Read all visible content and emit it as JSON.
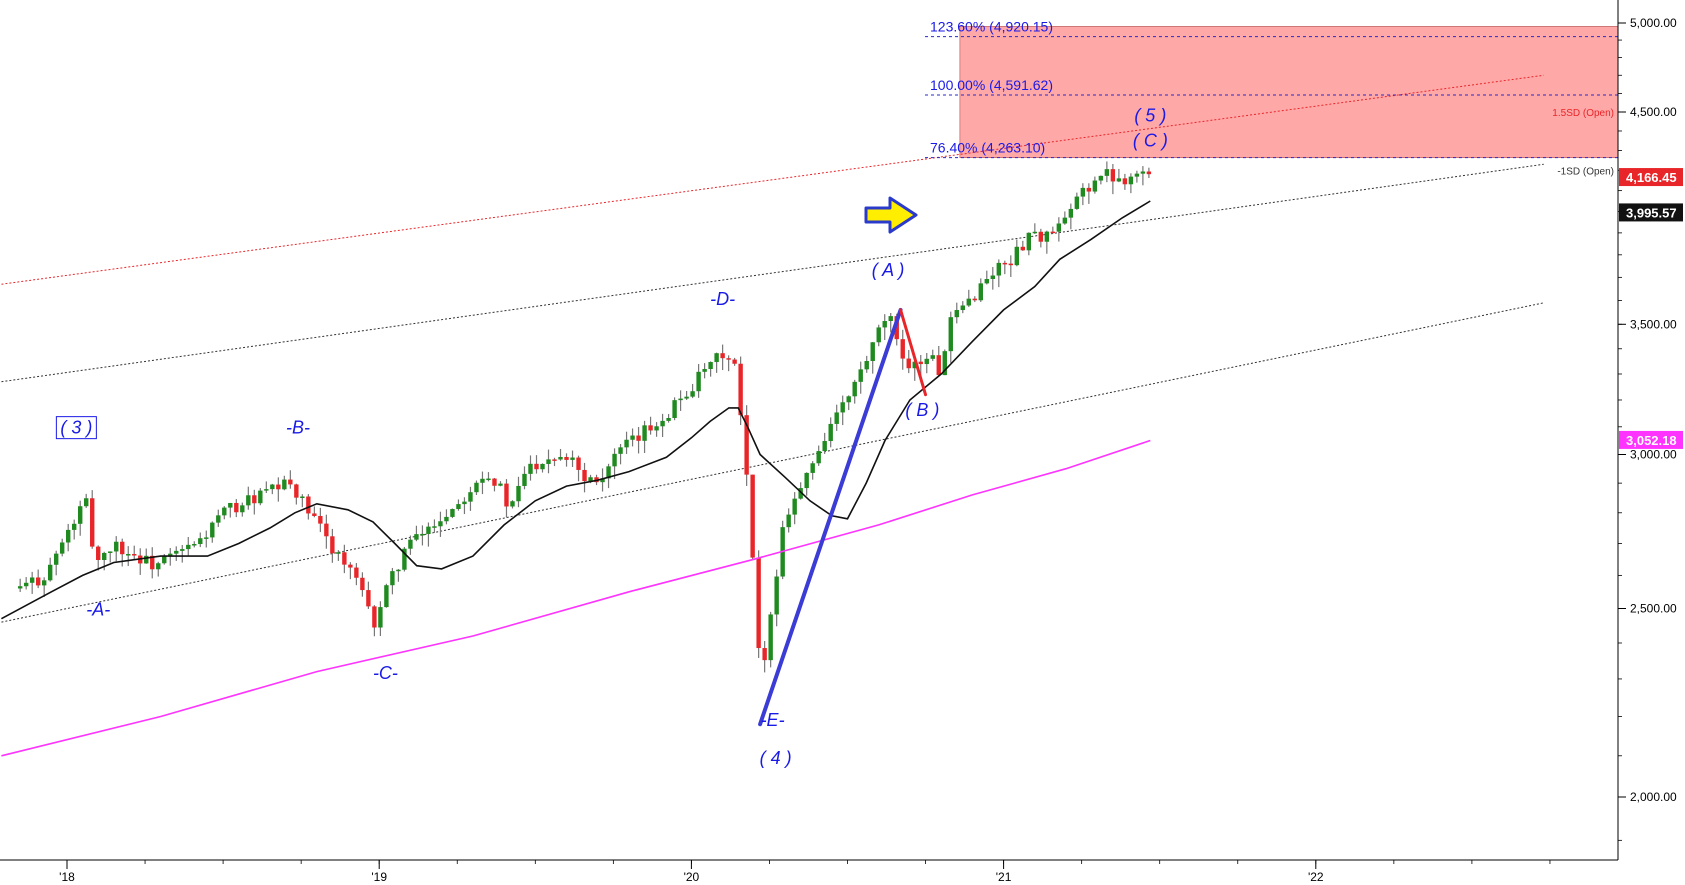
{
  "chart_data": {
    "type": "candlestick",
    "instrument_last": "4,166.45",
    "y_axis": {
      "ticks": [
        "5,000.00",
        "4,500.00",
        "3,500.00",
        "3,000.00",
        "2,500.00",
        "2,000.00"
      ],
      "tick_values": [
        5000,
        4500,
        3500,
        3000,
        2500,
        2000
      ],
      "range": [
        1750,
        5100
      ],
      "scale": "log"
    },
    "x_axis": {
      "ticks": [
        "'18",
        "'19",
        "'20",
        "'21",
        "'22"
      ],
      "tick_years": [
        2018,
        2019,
        2020,
        2021,
        2022
      ]
    },
    "price_tags": [
      {
        "label": "4,166.45",
        "value": 4166.45,
        "color": "#e8262a",
        "text_color": "#ffffff"
      },
      {
        "label": "3,995.57",
        "value": 3995.57,
        "color": "#111111",
        "text_color": "#ffffff"
      },
      {
        "label": "3,052.18",
        "value": 3052.18,
        "color": "#ff33ff",
        "text_color": "#ffffff"
      }
    ],
    "fib_levels": [
      {
        "label": "123.60% (4,920.15)",
        "value": 4920.15
      },
      {
        "label": "100.00% (4,591.62)",
        "value": 4591.62
      },
      {
        "label": "76.40% (4,263.10)",
        "value": 4263.1
      }
    ],
    "target_zone": {
      "low": 4263.1,
      "high": 4980,
      "start": 2020.86,
      "color": "#ff9e9e"
    },
    "channel_labels": [
      {
        "label": "1.5SD (Open)",
        "color": "#e8262a"
      },
      {
        "label": "-1SD (Open)",
        "color": "#333333"
      }
    ],
    "wave_labels": [
      {
        "text": "( 3 )",
        "t": 2018.03,
        "v": 3075,
        "boxed": true
      },
      {
        "text": "-A-",
        "t": 2018.1,
        "v": 2480
      },
      {
        "text": "-B-",
        "t": 2018.74,
        "v": 3075
      },
      {
        "text": "-C-",
        "t": 2019.02,
        "v": 2300
      },
      {
        "text": "-D-",
        "t": 2020.1,
        "v": 3580
      },
      {
        "text": "-E-",
        "t": 2020.26,
        "v": 2175
      },
      {
        "text": "( 4 )",
        "t": 2020.27,
        "v": 2080
      },
      {
        "text": "( A )",
        "t": 2020.63,
        "v": 3705
      },
      {
        "text": "( B )",
        "t": 2020.74,
        "v": 3140
      },
      {
        "text": "( 5 )",
        "t": 2021.47,
        "v": 4450
      },
      {
        "text": "( C )",
        "t": 2021.47,
        "v": 4320
      }
    ],
    "series": [
      {
        "name": "",
        "type": "candles",
        "up_color": "#1f8a1f",
        "down_color": "#e8262a",
        "anchors": [
          [
            2017.85,
            2560
          ],
          [
            2017.93,
            2600
          ],
          [
            2017.98,
            2690
          ],
          [
            2018.06,
            2840
          ],
          [
            2018.09,
            2640
          ],
          [
            2018.15,
            2700
          ],
          [
            2018.2,
            2670
          ],
          [
            2018.28,
            2630
          ],
          [
            2018.42,
            2700
          ],
          [
            2018.5,
            2800
          ],
          [
            2018.6,
            2850
          ],
          [
            2018.72,
            2900
          ],
          [
            2018.76,
            2820
          ],
          [
            2018.83,
            2720
          ],
          [
            2018.93,
            2580
          ],
          [
            2018.98,
            2450
          ],
          [
            2019.0,
            2500
          ],
          [
            2019.08,
            2680
          ],
          [
            2019.17,
            2760
          ],
          [
            2019.25,
            2830
          ],
          [
            2019.33,
            2940
          ],
          [
            2019.38,
            2900
          ],
          [
            2019.42,
            2800
          ],
          [
            2019.47,
            2950
          ],
          [
            2019.55,
            3000
          ],
          [
            2019.62,
            3000
          ],
          [
            2019.65,
            2920
          ],
          [
            2019.72,
            2930
          ],
          [
            2019.75,
            2990
          ],
          [
            2019.83,
            3060
          ],
          [
            2019.92,
            3150
          ],
          [
            2020.0,
            3250
          ],
          [
            2020.1,
            3380
          ],
          [
            2020.14,
            3320
          ],
          [
            2020.17,
            3000
          ],
          [
            2020.2,
            2600
          ],
          [
            2020.22,
            2300
          ],
          [
            2020.25,
            2450
          ],
          [
            2020.3,
            2800
          ],
          [
            2020.36,
            2900
          ],
          [
            2020.44,
            3100
          ],
          [
            2020.5,
            3200
          ],
          [
            2020.58,
            3400
          ],
          [
            2020.63,
            3550
          ],
          [
            2020.66,
            3400
          ],
          [
            2020.71,
            3330
          ],
          [
            2020.76,
            3380
          ],
          [
            2020.8,
            3300
          ],
          [
            2020.83,
            3500
          ],
          [
            2020.9,
            3620
          ],
          [
            2020.97,
            3730
          ],
          [
            2021.04,
            3800
          ],
          [
            2021.08,
            3900
          ],
          [
            2021.14,
            3880
          ],
          [
            2021.2,
            3950
          ],
          [
            2021.25,
            4100
          ],
          [
            2021.32,
            4180
          ],
          [
            2021.38,
            4160
          ],
          [
            2021.44,
            4200
          ],
          [
            2021.47,
            4166
          ]
        ]
      },
      {
        "name": "",
        "type": "ma",
        "color": "#111111",
        "points": [
          [
            2017.79,
            2470
          ],
          [
            2017.95,
            2550
          ],
          [
            2018.05,
            2600
          ],
          [
            2018.15,
            2640
          ],
          [
            2018.3,
            2660
          ],
          [
            2018.45,
            2660
          ],
          [
            2018.55,
            2700
          ],
          [
            2018.65,
            2750
          ],
          [
            2018.73,
            2800
          ],
          [
            2018.8,
            2830
          ],
          [
            2018.9,
            2810
          ],
          [
            2018.98,
            2770
          ],
          [
            2019.05,
            2700
          ],
          [
            2019.12,
            2630
          ],
          [
            2019.2,
            2620
          ],
          [
            2019.3,
            2660
          ],
          [
            2019.4,
            2760
          ],
          [
            2019.5,
            2840
          ],
          [
            2019.6,
            2890
          ],
          [
            2019.7,
            2910
          ],
          [
            2019.8,
            2940
          ],
          [
            2019.92,
            2990
          ],
          [
            2020.0,
            3060
          ],
          [
            2020.06,
            3120
          ],
          [
            2020.12,
            3170
          ],
          [
            2020.15,
            3170
          ],
          [
            2020.18,
            3100
          ],
          [
            2020.22,
            3000
          ],
          [
            2020.3,
            2920
          ],
          [
            2020.38,
            2840
          ],
          [
            2020.45,
            2790
          ],
          [
            2020.5,
            2780
          ],
          [
            2020.56,
            2900
          ],
          [
            2020.62,
            3050
          ],
          [
            2020.7,
            3200
          ],
          [
            2020.8,
            3300
          ],
          [
            2020.9,
            3430
          ],
          [
            2021.0,
            3560
          ],
          [
            2021.1,
            3660
          ],
          [
            2021.18,
            3780
          ],
          [
            2021.28,
            3870
          ],
          [
            2021.38,
            3970
          ],
          [
            2021.47,
            4050
          ]
        ]
      },
      {
        "name": "",
        "type": "ma",
        "color": "#ff33ff",
        "points": [
          [
            2017.79,
            2100
          ],
          [
            2018.3,
            2200
          ],
          [
            2018.8,
            2320
          ],
          [
            2019.3,
            2420
          ],
          [
            2019.8,
            2550
          ],
          [
            2020.2,
            2650
          ],
          [
            2020.6,
            2760
          ],
          [
            2020.9,
            2860
          ],
          [
            2021.2,
            2950
          ],
          [
            2021.47,
            3050
          ]
        ]
      }
    ],
    "trendlines": [
      {
        "name": "",
        "color": "#e8262a",
        "style": "dotted",
        "from": [
          2017.79,
          3670
        ],
        "to": [
          2022.73,
          4700
        ]
      },
      {
        "name": "",
        "color": "#333333",
        "style": "dotted",
        "from": [
          2017.79,
          3270
        ],
        "to": [
          2022.73,
          4230
        ]
      },
      {
        "name": "",
        "color": "#333333",
        "style": "dotted",
        "from": [
          2017.79,
          2460
        ],
        "to": [
          2022.73,
          3590
        ]
      }
    ],
    "wave_lines": [
      {
        "color": "#3b3bd6",
        "from": [
          2020.22,
          2180
        ],
        "to": [
          2020.67,
          3560
        ],
        "width": 4
      },
      {
        "color": "#e8262a",
        "from": [
          2020.67,
          3560
        ],
        "to": [
          2020.75,
          3220
        ],
        "width": 3
      }
    ]
  }
}
